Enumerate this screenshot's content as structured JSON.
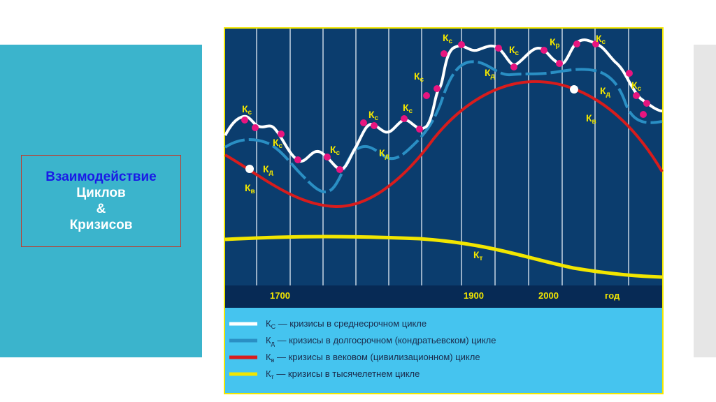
{
  "slide": {
    "title_line1": "Взаимодействие",
    "title_line2": "Циклов",
    "title_line3": "&",
    "title_line4": "Кризисов"
  },
  "figure": {
    "axis_labels": [
      "1700",
      "1900",
      "2000",
      "год"
    ],
    "curve_labels": {
      "medium": "К",
      "medium_sub": "С",
      "long": "К",
      "long_sub": "Д",
      "century": "К",
      "century_sub": "В",
      "millennium": "К",
      "millennium_sub": "Т",
      "small_sub_c": "с",
      "small_sub_d": "д",
      "small_sub_v": "в",
      "small_sub_t": "т",
      "small_sub_r": "р"
    },
    "legend": [
      {
        "symbol": "К",
        "sub": "С",
        "text": " — кризисы в среднесрочном цикле",
        "color": "#ffffff"
      },
      {
        "symbol": "К",
        "sub": "д",
        "text": " — кризисы в долгосрочном (кондратьевском) цикле",
        "color": "#2a8fc4"
      },
      {
        "symbol": "К",
        "sub": "в",
        "text": " — кризисы в вековом (цивилизационном) цикле",
        "color": "#d81c1c"
      },
      {
        "symbol": "К",
        "sub": "т",
        "text": " — кризисы в тысячелетнем цикле",
        "color": "#f2e600"
      }
    ],
    "colors": {
      "background": "#0b3d6e",
      "axis_band": "#072a55",
      "legend_bg": "#45c4ef",
      "frame": "#f2e600",
      "medium_curve": "#ffffff",
      "long_curve": "#2a8fc4",
      "century_curve": "#d81c1c",
      "millennium_curve": "#f2e600",
      "crisis_dot": "#e8157f"
    }
  }
}
